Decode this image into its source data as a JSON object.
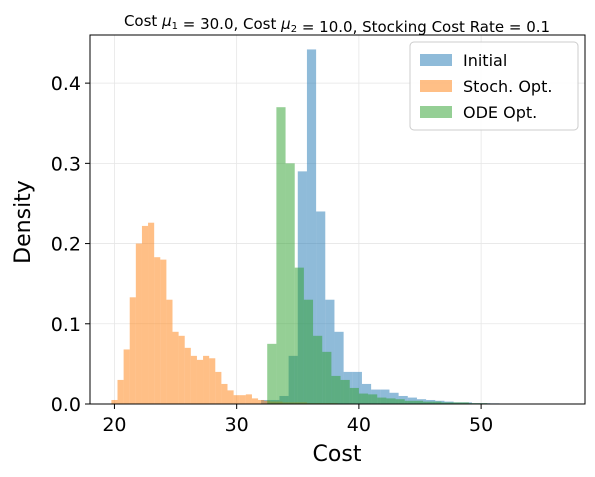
{
  "chart_data": {
    "type": "histogram",
    "title": "Cost μ1 = 30.0, Cost μ2 = 10.0, Stocking Cost Rate = 0.1",
    "xlabel": "Cost",
    "ylabel": "Density",
    "xlim": [
      18,
      58.5
    ],
    "ylim": [
      0,
      0.46
    ],
    "xticks": [
      20,
      30,
      40,
      50
    ],
    "yticks": [
      0.0,
      0.1,
      0.2,
      0.3,
      0.4
    ],
    "xtick_labels": [
      "20",
      "30",
      "40",
      "50"
    ],
    "ytick_labels": [
      "0.0",
      "0.1",
      "0.2",
      "0.3",
      "0.4"
    ],
    "grid": true,
    "legend_position": "top-right",
    "series": [
      {
        "name": "Initial",
        "color": "#1f77b4",
        "opacity": 0.5,
        "bin_width": 0.75,
        "bins": [
          [
            32.0,
            0.005
          ],
          [
            32.75,
            0.005
          ],
          [
            33.5,
            0.01
          ],
          [
            34.25,
            0.06
          ],
          [
            35.0,
            0.29
          ],
          [
            35.75,
            0.442
          ],
          [
            36.5,
            0.24
          ],
          [
            37.25,
            0.13
          ],
          [
            38.0,
            0.09
          ],
          [
            38.75,
            0.04
          ],
          [
            39.5,
            0.04
          ],
          [
            40.25,
            0.025
          ],
          [
            41.0,
            0.018
          ],
          [
            41.75,
            0.018
          ],
          [
            42.5,
            0.014
          ],
          [
            43.25,
            0.01
          ],
          [
            44.0,
            0.008
          ],
          [
            44.75,
            0.006
          ],
          [
            45.5,
            0.005
          ],
          [
            46.25,
            0.004
          ],
          [
            47.0,
            0.003
          ],
          [
            47.75,
            0.002
          ],
          [
            48.5,
            0.002
          ],
          [
            49.25,
            0.001
          ],
          [
            50.0,
            0.001
          ],
          [
            50.75,
            0.0008
          ],
          [
            51.5,
            0.0005
          ],
          [
            52.25,
            0.0004
          ],
          [
            53.0,
            0.0003
          ],
          [
            53.75,
            0.0002
          ],
          [
            54.5,
            0.0002
          ],
          [
            55.25,
            0.0001
          ],
          [
            56.0,
            0.0001
          ],
          [
            56.75,
            0.0001
          ]
        ]
      },
      {
        "name": "Stoch. Opt.",
        "color": "#ff7f0e",
        "opacity": 0.5,
        "bin_width": 0.5,
        "bins": [
          [
            19.75,
            0.005
          ],
          [
            20.25,
            0.03
          ],
          [
            20.75,
            0.068
          ],
          [
            21.25,
            0.133
          ],
          [
            21.75,
            0.2
          ],
          [
            22.25,
            0.222
          ],
          [
            22.75,
            0.226
          ],
          [
            23.25,
            0.183
          ],
          [
            23.75,
            0.18
          ],
          [
            24.25,
            0.13
          ],
          [
            24.75,
            0.09
          ],
          [
            25.25,
            0.085
          ],
          [
            25.75,
            0.07
          ],
          [
            26.25,
            0.06
          ],
          [
            26.75,
            0.055
          ],
          [
            27.25,
            0.06
          ],
          [
            27.75,
            0.057
          ],
          [
            28.25,
            0.04
          ],
          [
            28.75,
            0.025
          ],
          [
            29.25,
            0.017
          ],
          [
            29.75,
            0.011
          ],
          [
            30.25,
            0.011
          ],
          [
            30.75,
            0.012
          ],
          [
            31.25,
            0.007
          ],
          [
            31.75,
            0.005
          ],
          [
            32.25,
            0.004
          ],
          [
            32.75,
            0.003
          ],
          [
            33.25,
            0.003
          ],
          [
            33.75,
            0.002
          ],
          [
            34.25,
            0.002
          ],
          [
            34.75,
            0.002
          ],
          [
            35.25,
            0.002
          ],
          [
            35.75,
            0.001
          ],
          [
            36.25,
            0.001
          ],
          [
            36.75,
            0.001
          ],
          [
            37.25,
            0.001
          ],
          [
            37.75,
            0.001
          ]
        ]
      },
      {
        "name": "ODE Opt.",
        "color": "#2ca02c",
        "opacity": 0.5,
        "bin_width": 0.75,
        "bins": [
          [
            32.5,
            0.075
          ],
          [
            33.25,
            0.37
          ],
          [
            34.0,
            0.3
          ],
          [
            34.75,
            0.17
          ],
          [
            35.5,
            0.13
          ],
          [
            36.25,
            0.085
          ],
          [
            37.0,
            0.065
          ],
          [
            37.75,
            0.035
          ],
          [
            38.5,
            0.03
          ],
          [
            39.25,
            0.02
          ],
          [
            40.0,
            0.013
          ],
          [
            40.75,
            0.012
          ],
          [
            41.5,
            0.008
          ],
          [
            42.25,
            0.007
          ],
          [
            43.0,
            0.006
          ],
          [
            43.75,
            0.004
          ],
          [
            44.5,
            0.004
          ],
          [
            45.25,
            0.003
          ],
          [
            46.0,
            0.003
          ],
          [
            46.75,
            0.002
          ],
          [
            47.5,
            0.002
          ],
          [
            48.25,
            0.002
          ],
          [
            49.0,
            0.001
          ],
          [
            49.75,
            0.001
          ]
        ]
      }
    ]
  }
}
